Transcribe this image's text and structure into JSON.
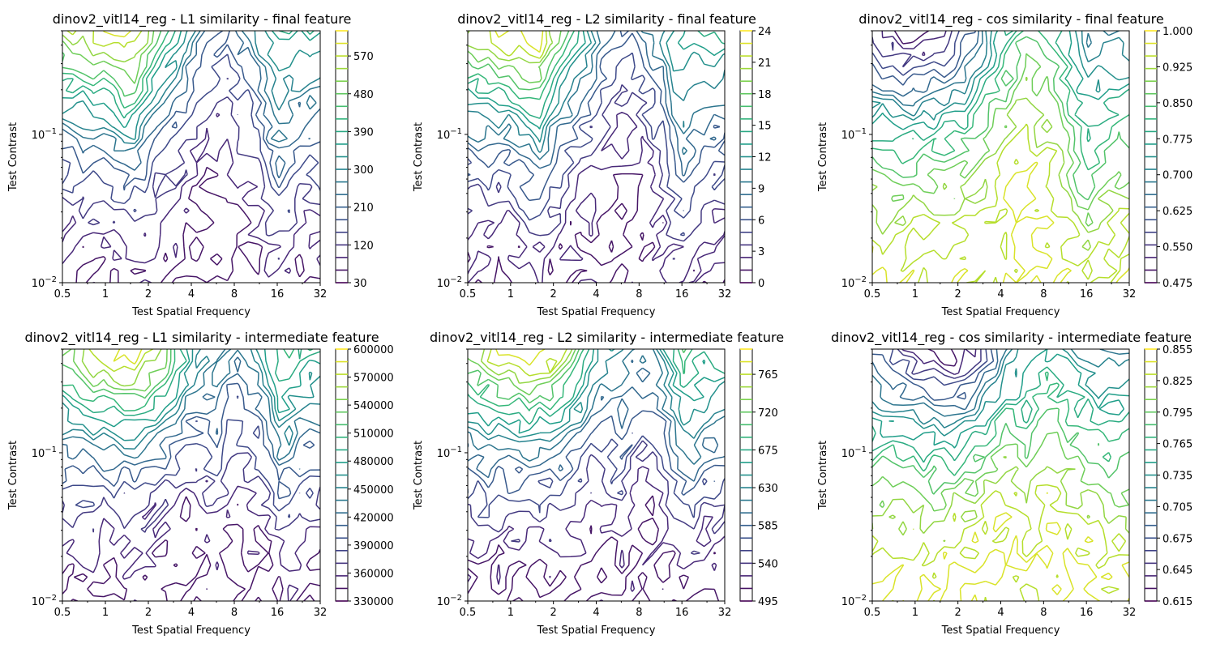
{
  "chart_data": [
    {
      "type": "contour",
      "title": "dinov2_vitl14_reg - L1 similarity - final feature",
      "xlabel": "Test Spatial Frequency",
      "ylabel": "Test Contrast",
      "xscale": "log2",
      "yscale": "log10",
      "xlim": [
        0.5,
        32
      ],
      "ylim": [
        0.01,
        0.5
      ],
      "x_ticks": [
        "0.5",
        "1",
        "2",
        "4",
        "8",
        "16",
        "32"
      ],
      "y_ticks": [
        "10^-2",
        "10^-1"
      ],
      "colormap": "viridis",
      "colorbar": {
        "min": 30,
        "max": 630,
        "ticks": [
          "30",
          "120",
          "210",
          "300",
          "390",
          "480",
          "570"
        ]
      },
      "peak": {
        "x": 1.0,
        "y": 0.5
      },
      "ridges": [
        {
          "x": 16,
          "y": 0.08
        },
        {
          "x": 1.5,
          "y": 0.15
        }
      ]
    },
    {
      "type": "contour",
      "title": "dinov2_vitl14_reg - L2 similarity - final feature",
      "xlabel": "Test Spatial Frequency",
      "ylabel": "Test Contrast",
      "xscale": "log2",
      "yscale": "log10",
      "xlim": [
        0.5,
        32
      ],
      "ylim": [
        0.01,
        0.5
      ],
      "x_ticks": [
        "0.5",
        "1",
        "2",
        "4",
        "8",
        "16",
        "32"
      ],
      "y_ticks": [
        "10^-2",
        "10^-1"
      ],
      "colormap": "viridis",
      "colorbar": {
        "min": 0,
        "max": 24,
        "ticks": [
          "0",
          "3",
          "6",
          "9",
          "12",
          "15",
          "18",
          "21",
          "24"
        ]
      },
      "peak": {
        "x": 1.0,
        "y": 0.5
      },
      "ridges": [
        {
          "x": 16,
          "y": 0.08
        },
        {
          "x": 1.5,
          "y": 0.15
        }
      ]
    },
    {
      "type": "contour",
      "title": "dinov2_vitl14_reg - cos similarity - final feature",
      "xlabel": "Test Spatial Frequency",
      "ylabel": "Test Contrast",
      "xscale": "log2",
      "yscale": "log10",
      "xlim": [
        0.5,
        32
      ],
      "ylim": [
        0.01,
        0.5
      ],
      "x_ticks": [
        "0.5",
        "1",
        "2",
        "4",
        "8",
        "16",
        "32"
      ],
      "y_ticks": [
        "10^-2",
        "10^-1"
      ],
      "colormap": "viridis",
      "colorbar": {
        "min": 0.475,
        "max": 1.0,
        "ticks": [
          "0.475",
          "0.550",
          "0.625",
          "0.700",
          "0.775",
          "0.850",
          "0.925",
          "1.000"
        ]
      },
      "low": {
        "x": 1.0,
        "y": 0.45
      },
      "ridges": [
        {
          "x": 16,
          "y": 0.08
        }
      ]
    },
    {
      "type": "contour",
      "title": "dinov2_vitl14_reg - L1 similarity - intermediate feature",
      "xlabel": "Test Spatial Frequency",
      "ylabel": "Test Contrast",
      "xscale": "log2",
      "yscale": "log10",
      "xlim": [
        0.5,
        32
      ],
      "ylim": [
        0.01,
        0.5
      ],
      "x_ticks": [
        "0.5",
        "1",
        "2",
        "4",
        "8",
        "16",
        "32"
      ],
      "y_ticks": [
        "10^-2",
        "10^-1"
      ],
      "colormap": "viridis",
      "colorbar": {
        "min": 330000,
        "max": 600000,
        "ticks": [
          "330000",
          "360000",
          "390000",
          "420000",
          "450000",
          "480000",
          "510000",
          "540000",
          "570000",
          "600000"
        ]
      },
      "peak": {
        "x": 1.5,
        "y": 0.5
      },
      "ridges": [
        {
          "x": 6,
          "y": 0.12
        },
        {
          "x": 17,
          "y": 0.2
        }
      ]
    },
    {
      "type": "contour",
      "title": "dinov2_vitl14_reg - L2 similarity - intermediate feature",
      "xlabel": "Test Spatial Frequency",
      "ylabel": "Test Contrast",
      "xscale": "log2",
      "yscale": "log10",
      "xlim": [
        0.5,
        32
      ],
      "ylim": [
        0.01,
        0.5
      ],
      "x_ticks": [
        "0.5",
        "1",
        "2",
        "4",
        "8",
        "16",
        "32"
      ],
      "y_ticks": [
        "10^-2",
        "10^-1"
      ],
      "colormap": "viridis",
      "colorbar": {
        "min": 495,
        "max": 795,
        "ticks": [
          "495",
          "540",
          "585",
          "630",
          "675",
          "720",
          "765"
        ]
      },
      "peak": {
        "x": 1.5,
        "y": 0.5
      },
      "ridges": [
        {
          "x": 6,
          "y": 0.12
        },
        {
          "x": 17,
          "y": 0.2
        }
      ]
    },
    {
      "type": "contour",
      "title": "dinov2_vitl14_reg - cos similarity - intermediate feature",
      "xlabel": "Test Spatial Frequency",
      "ylabel": "Test Contrast",
      "xscale": "log2",
      "yscale": "log10",
      "xlim": [
        0.5,
        32
      ],
      "ylim": [
        0.01,
        0.5
      ],
      "x_ticks": [
        "0.5",
        "1",
        "2",
        "4",
        "8",
        "16",
        "32"
      ],
      "y_ticks": [
        "10^-2",
        "10^-1"
      ],
      "colormap": "viridis",
      "colorbar": {
        "min": 0.615,
        "max": 0.855,
        "ticks": [
          "0.615",
          "0.645",
          "0.675",
          "0.705",
          "0.735",
          "0.765",
          "0.795",
          "0.825",
          "0.855"
        ]
      },
      "low": {
        "x": 2.0,
        "y": 0.5
      },
      "ridges": [
        {
          "x": 6,
          "y": 0.12
        }
      ]
    }
  ]
}
